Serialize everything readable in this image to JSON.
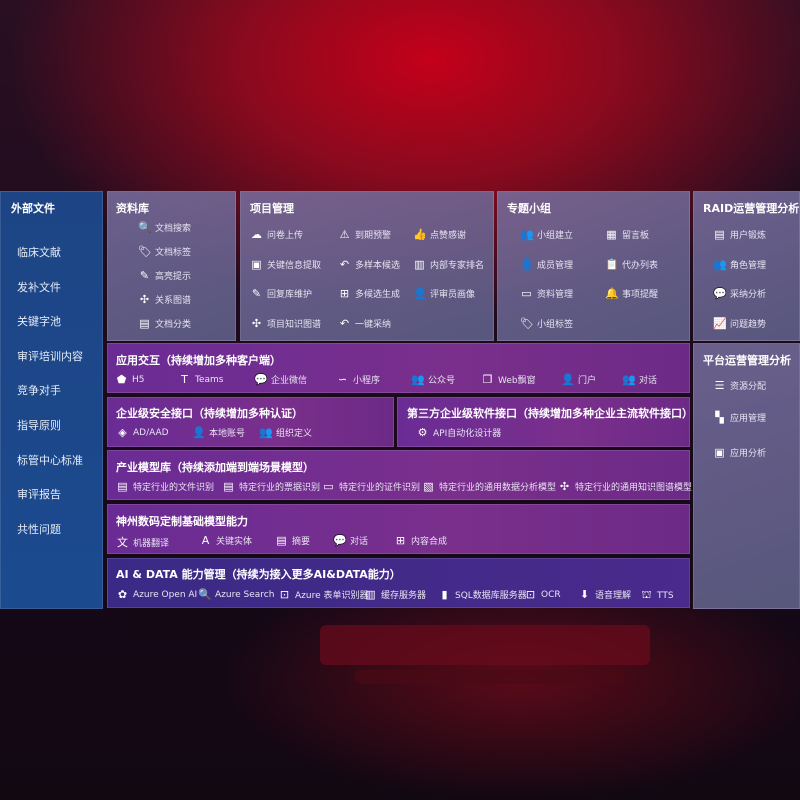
{
  "sidebar": {
    "title": "外部文件",
    "items": [
      "临床文献",
      "发补文件",
      "关键字池",
      "审评培训内容",
      "竞争对手",
      "指导原则",
      "标管中心标准",
      "审评报告",
      "共性问题"
    ]
  },
  "ziliaoku": {
    "title": "资料库",
    "items": [
      {
        "label": "文档搜索",
        "icon": "doc-search-icon",
        "g": "🔍"
      },
      {
        "label": "文档标签",
        "icon": "tag-icon",
        "g": "🏷"
      },
      {
        "label": "高亮提示",
        "icon": "pen-icon",
        "g": "✎"
      },
      {
        "label": "关系图谱",
        "icon": "graph-icon",
        "g": "✣"
      },
      {
        "label": "文档分类",
        "icon": "folder-icon",
        "g": "▤"
      }
    ]
  },
  "xiangmu": {
    "title": "项目管理",
    "items": [
      {
        "label": "问卷上传",
        "g": "☁"
      },
      {
        "label": "到期预警",
        "g": "⚠"
      },
      {
        "label": "点赞感谢",
        "g": "👍"
      },
      {
        "label": "关键信息提取",
        "g": "▣"
      },
      {
        "label": "多样本候选",
        "g": "↶"
      },
      {
        "label": "内部专家排名",
        "g": "▥"
      },
      {
        "label": "回复库维护",
        "g": "✎"
      },
      {
        "label": "多候选生成",
        "g": "⊞"
      },
      {
        "label": "评审员画像",
        "g": "👤"
      },
      {
        "label": "项目知识图谱",
        "g": "✣"
      },
      {
        "label": "一键采纳",
        "g": "↶"
      }
    ]
  },
  "zhuanti": {
    "title": "专题小组",
    "items": [
      {
        "label": "小组建立",
        "g": "👥"
      },
      {
        "label": "留言板",
        "g": "▦"
      },
      {
        "label": "成员管理",
        "g": "👤"
      },
      {
        "label": "代办列表",
        "g": "📋"
      },
      {
        "label": "资料管理",
        "g": "▭"
      },
      {
        "label": "事项提醒",
        "g": "🔔"
      },
      {
        "label": "小组标签",
        "g": "🏷"
      }
    ]
  },
  "raid": {
    "title": "RAID运营管理分析",
    "items": [
      {
        "label": "用户锻炼",
        "g": "▤"
      },
      {
        "label": "角色管理",
        "g": "👥"
      },
      {
        "label": "采纳分析",
        "g": "💬"
      },
      {
        "label": "问题趋势",
        "g": "📈"
      }
    ]
  },
  "pingtai": {
    "title": "平台运营管理分析",
    "items": [
      {
        "label": "资源分配",
        "g": "☰"
      },
      {
        "label": "应用管理",
        "g": "▚"
      },
      {
        "label": "应用分析",
        "g": "▣"
      }
    ]
  },
  "yingyong": {
    "title": "应用交互（持续增加多种客户端）",
    "items": [
      {
        "label": "H5",
        "g": "⬟"
      },
      {
        "label": "Teams",
        "g": "T"
      },
      {
        "label": "企业微信",
        "g": "💬"
      },
      {
        "label": "小程序",
        "g": "∽"
      },
      {
        "label": "公众号",
        "g": "👥"
      },
      {
        "label": "Web飘窗",
        "g": "❐"
      },
      {
        "label": "门户",
        "g": "👤"
      },
      {
        "label": "对话",
        "g": "👥"
      }
    ]
  },
  "anquan": {
    "title": "企业级安全接口（持续增加多种认证）",
    "items": [
      {
        "label": "AD/AAD",
        "g": "◈"
      },
      {
        "label": "本地账号",
        "g": "👤"
      },
      {
        "label": "组织定义",
        "g": "👥"
      }
    ]
  },
  "disanfang": {
    "title": "第三方企业级软件接口（持续增加多种企业主流软件接口）",
    "items": [
      {
        "label": "API自动化设计器",
        "g": "⚙"
      }
    ]
  },
  "chanye": {
    "title": "产业模型库（持续添加端到端场景模型）",
    "items": [
      {
        "label": "特定行业的文件识别",
        "g": "▤"
      },
      {
        "label": "特定行业的票据识别",
        "g": "▤"
      },
      {
        "label": "特定行业的证件识别",
        "g": "▭"
      },
      {
        "label": "特定行业的通用数据分析模型",
        "g": "▧"
      },
      {
        "label": "特定行业的通用知识图谱模型",
        "g": "✣"
      }
    ]
  },
  "shenzhou": {
    "title": "神州数码定制基础模型能力",
    "items": [
      {
        "label": "机器翻译",
        "g": "文"
      },
      {
        "label": "关键实体",
        "g": "A"
      },
      {
        "label": "摘要",
        "g": "▤"
      },
      {
        "label": "对话",
        "g": "💬"
      },
      {
        "label": "内容合成",
        "g": "⊞"
      }
    ]
  },
  "aidata": {
    "title": "AI & DATA 能力管理（持续为接入更多AI&DATA能力）",
    "items": [
      {
        "label": "Azure Open AI",
        "g": "✿"
      },
      {
        "label": "Azure Search",
        "g": "🔍"
      },
      {
        "label": "Azure 表单识别器",
        "g": "⊡"
      },
      {
        "label": "缓存服务器",
        "g": "▥"
      },
      {
        "label": "SQL数据库服务器",
        "g": "▮"
      },
      {
        "label": "OCR",
        "g": "⊡"
      },
      {
        "label": "语音理解",
        "g": "⬇"
      },
      {
        "label": "TTS",
        "g": "⛫"
      }
    ]
  }
}
